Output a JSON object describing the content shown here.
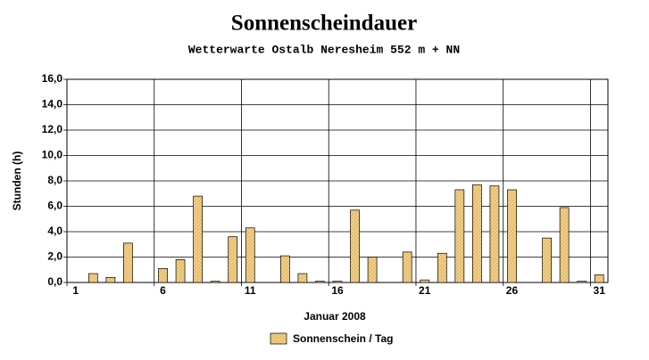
{
  "chart_data": {
    "type": "bar",
    "title": "Sonnenscheindauer",
    "subtitle": "Wetterwarte Ostalb Neresheim 552 m + NN",
    "x_label": "Januar 2008",
    "y_label": "Stunden  (h)",
    "x": [
      1,
      2,
      3,
      4,
      5,
      6,
      7,
      8,
      9,
      10,
      11,
      12,
      13,
      14,
      15,
      16,
      17,
      18,
      19,
      20,
      21,
      22,
      23,
      24,
      25,
      26,
      27,
      28,
      29,
      30,
      31
    ],
    "series": [
      {
        "name": "Sonnenschein / Tag",
        "color": "#f3cf86",
        "values": [
          0,
          0.7,
          0.4,
          3.1,
          0,
          1.1,
          1.8,
          6.8,
          0.1,
          3.6,
          4.3,
          0,
          2.1,
          0.7,
          0.1,
          0.1,
          5.7,
          2.0,
          0,
          2.4,
          0.2,
          2.3,
          7.3,
          7.7,
          7.6,
          7.3,
          0,
          3.5,
          5.9,
          0.1,
          0.6
        ]
      }
    ],
    "xlim": [
      0.5,
      31.5
    ],
    "xticks": [
      1,
      6,
      11,
      16,
      21,
      26,
      31
    ],
    "ylim": [
      0,
      16
    ],
    "yticks": [
      {
        "value": 0,
        "label": "0,0"
      },
      {
        "value": 2,
        "label": "2,0"
      },
      {
        "value": 4,
        "label": "4,0"
      },
      {
        "value": 6,
        "label": "6,0"
      },
      {
        "value": 8,
        "label": "8,0"
      },
      {
        "value": 10,
        "label": "10,0"
      },
      {
        "value": 12,
        "label": "12,0"
      },
      {
        "value": 14,
        "label": "14,0"
      },
      {
        "value": 16,
        "label": "16,0"
      }
    ],
    "grid": true,
    "legend": "bottom"
  }
}
